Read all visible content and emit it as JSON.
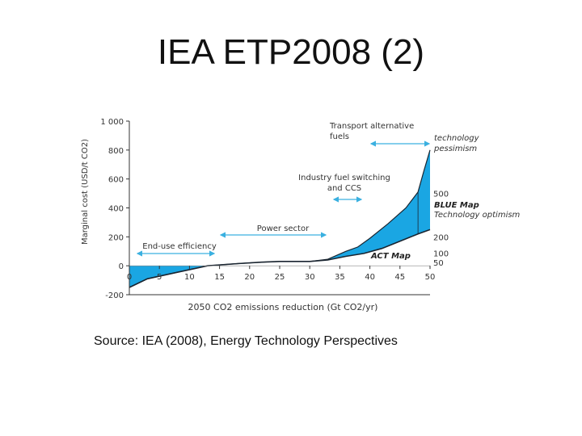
{
  "slide": {
    "title": "IEA ETP2008 (2)",
    "source": "Source: IEA (2008), Energy Technology Perspectives"
  },
  "colors": {
    "fill": "#1aa6e3",
    "line": "#1a2530",
    "arrow": "#3ab0e0",
    "axis": "#333333",
    "text": "#333333"
  },
  "chart_data": {
    "type": "area",
    "title": "",
    "xlabel": "2050 CO2 emissions reduction (Gt CO2/yr)",
    "ylabel": "Marginal cost (USD/t CO2)",
    "xlim": [
      0,
      50
    ],
    "ylim": [
      -200,
      1000
    ],
    "x_ticks": [
      "0",
      "5",
      "10",
      "15",
      "20",
      "25",
      "30",
      "35",
      "40",
      "45",
      "50"
    ],
    "y_ticks": [
      "1 000",
      "800",
      "600",
      "400",
      "200",
      "0",
      "-200"
    ],
    "y_tick_values": [
      1000,
      800,
      600,
      400,
      200,
      0,
      -200
    ],
    "series": [
      {
        "name": "ACT Map (lower bound)",
        "x": [
          0,
          3,
          8,
          13,
          18,
          22,
          25,
          30,
          33,
          36,
          39,
          42,
          45,
          48,
          50
        ],
        "y": [
          -150,
          -90,
          -45,
          0,
          15,
          25,
          30,
          30,
          40,
          65,
          85,
          120,
          170,
          220,
          250
        ]
      },
      {
        "name": "Technology pessimism (upper bound)",
        "x": [
          0,
          3,
          8,
          13,
          18,
          22,
          25,
          30,
          33,
          36,
          38,
          40,
          43,
          46,
          48,
          49,
          50
        ],
        "y": [
          -150,
          -90,
          -45,
          0,
          15,
          25,
          30,
          30,
          45,
          100,
          130,
          190,
          290,
          400,
          510,
          660,
          800
        ]
      }
    ],
    "right_axis_labels": [
      {
        "text": "500",
        "value": 500
      },
      {
        "text": "200",
        "value": 200
      },
      {
        "text": "100",
        "value": 100
      },
      {
        "text": "50",
        "value": 50
      }
    ],
    "annotations": {
      "end_use": "End-use efficiency",
      "power": "Power sector",
      "industry_1": "Industry fuel switching",
      "industry_2": "and CCS",
      "transport_1": "Transport alternative",
      "transport_2": "fuels",
      "pessimism_1": "technology",
      "pessimism_2": "pessimism",
      "blue_map": "BLUE Map",
      "optimism": "Technology optimism",
      "act_map": "ACT Map"
    }
  }
}
